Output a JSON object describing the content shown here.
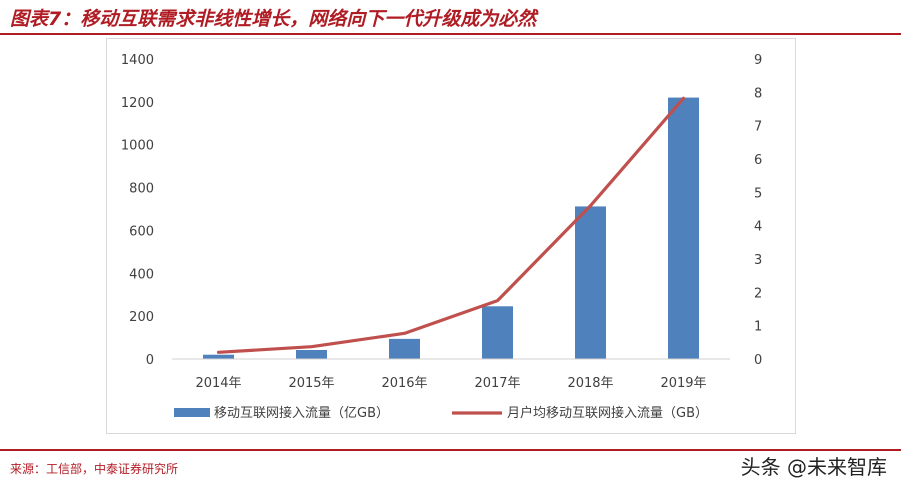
{
  "header": {
    "title": "图表7：移动互联需求非线性增长，网络向下一代升级成为必然"
  },
  "footer": {
    "source": "来源：工信部，中泰证券研究所",
    "watermark": "头条 @未来智库"
  },
  "colors": {
    "accent": "#b01c24",
    "bar": "#4f81bd",
    "line": "#c0504d"
  },
  "chart_data": {
    "type": "bar",
    "title": "",
    "xlabel": "",
    "ylabel": "",
    "categories": [
      "2014年",
      "2015年",
      "2016年",
      "2017年",
      "2018年",
      "2019年"
    ],
    "series": [
      {
        "name": "移动互联网接入流量（亿GB）",
        "type": "bar",
        "axis": "left",
        "values": [
          20,
          42,
          94,
          246,
          712,
          1220
        ]
      },
      {
        "name": "月户均移动互联网接入流量（GB）",
        "type": "line",
        "axis": "right",
        "values": [
          0.2,
          0.37,
          0.77,
          1.75,
          4.6,
          7.82
        ]
      }
    ],
    "ylim": [
      0,
      1400
    ],
    "yticks": [
      0,
      200,
      400,
      600,
      800,
      1000,
      1200,
      1400
    ],
    "y2lim": [
      0,
      9
    ],
    "y2ticks": [
      0,
      1,
      2,
      3,
      4,
      5,
      6,
      7,
      8,
      9
    ],
    "grid": false,
    "legend": "bottom"
  }
}
